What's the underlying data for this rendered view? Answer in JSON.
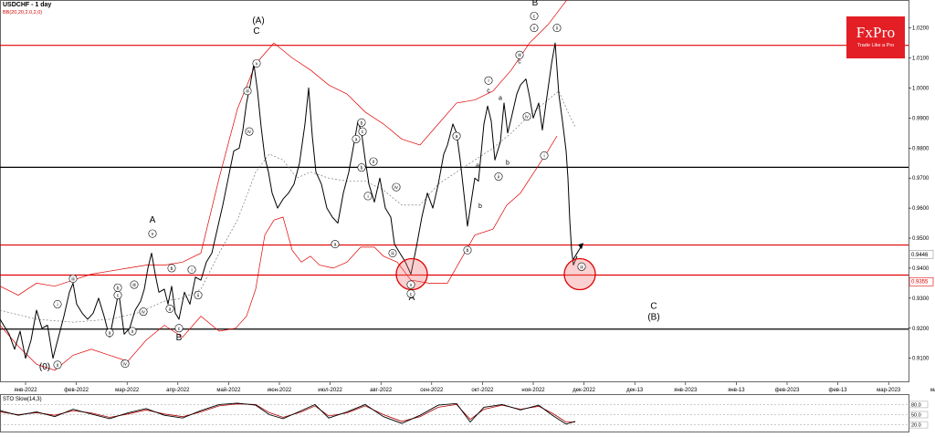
{
  "header": {
    "symbol_label": "USDCHF - 1 day",
    "bb_label": "BB(20,20,2.0,2,0)"
  },
  "logo": {
    "brand": "FxPro",
    "tagline": "Trade Like a Pro",
    "color": "#e31e25"
  },
  "stochastic": {
    "label": "STO Slow(14,3)",
    "levels": [
      "80.0",
      "50.0",
      "20.0"
    ]
  },
  "chart_data": {
    "type": "line",
    "instrument": "USDCHF",
    "timeframe": "1 day",
    "ylim": [
      0.902,
      1.029
    ],
    "x_tick_labels": [
      "янв-2022",
      "фев-2022",
      "мар-2022",
      "апр-2022",
      "май-2022",
      "июн-2022",
      "июл-2022",
      "авг-2022",
      "сен-2022",
      "окт-2022",
      "ноя-2022",
      "дек-2022",
      "дек-13",
      "янв-2023",
      "янв-13",
      "фев-2023",
      "фев-13",
      "мар-2023",
      "мар-13"
    ],
    "y_tick_labels": [
      "1.0200",
      "1.0100",
      "1.0000",
      "0.9900",
      "0.9800",
      "0.9700",
      "0.9600",
      "0.9500",
      "0.9400",
      "0.9300",
      "0.9200",
      "0.9100"
    ],
    "price_markers": [
      "0.9446",
      "0.9355"
    ],
    "price_path": [
      [
        0,
        0.923
      ],
      [
        10,
        0.918
      ],
      [
        16,
        0.913
      ],
      [
        22,
        0.919
      ],
      [
        28,
        0.91
      ],
      [
        34,
        0.916
      ],
      [
        40,
        0.926
      ],
      [
        46,
        0.92
      ],
      [
        52,
        0.921
      ],
      [
        58,
        0.91
      ],
      [
        64,
        0.917
      ],
      [
        70,
        0.924
      ],
      [
        76,
        0.932
      ],
      [
        80,
        0.935
      ],
      [
        84,
        0.928
      ],
      [
        90,
        0.925
      ],
      [
        96,
        0.923
      ],
      [
        102,
        0.925
      ],
      [
        108,
        0.93
      ],
      [
        114,
        0.924
      ],
      [
        120,
        0.917
      ],
      [
        126,
        0.926
      ],
      [
        130,
        0.932
      ],
      [
        136,
        0.918
      ],
      [
        142,
        0.92
      ],
      [
        148,
        0.926
      ],
      [
        154,
        0.929
      ],
      [
        158,
        0.933
      ],
      [
        162,
        0.94
      ],
      [
        166,
        0.945
      ],
      [
        170,
        0.938
      ],
      [
        174,
        0.932
      ],
      [
        180,
        0.933
      ],
      [
        184,
        0.928
      ],
      [
        188,
        0.934
      ],
      [
        192,
        0.925
      ],
      [
        196,
        0.923
      ],
      [
        202,
        0.932
      ],
      [
        208,
        0.928
      ],
      [
        214,
        0.937
      ],
      [
        220,
        0.936
      ],
      [
        226,
        0.942
      ],
      [
        232,
        0.945
      ],
      [
        238,
        0.953
      ],
      [
        244,
        0.961
      ],
      [
        250,
        0.97
      ],
      [
        256,
        0.979
      ],
      [
        262,
        0.98
      ],
      [
        266,
        0.986
      ],
      [
        270,
        0.995
      ],
      [
        274,
        1.001
      ],
      [
        278,
        1.008
      ],
      [
        282,
        0.999
      ],
      [
        286,
        0.987
      ],
      [
        290,
        0.977
      ],
      [
        294,
        0.972
      ],
      [
        298,
        0.965
      ],
      [
        304,
        0.96
      ],
      [
        310,
        0.963
      ],
      [
        316,
        0.965
      ],
      [
        322,
        0.968
      ],
      [
        328,
        0.975
      ],
      [
        334,
        0.988
      ],
      [
        338,
        1.0
      ],
      [
        342,
        0.984
      ],
      [
        346,
        0.972
      ],
      [
        352,
        0.968
      ],
      [
        358,
        0.96
      ],
      [
        364,
        0.957
      ],
      [
        370,
        0.955
      ],
      [
        376,
        0.965
      ],
      [
        382,
        0.972
      ],
      [
        388,
        0.982
      ],
      [
        392,
        0.989
      ],
      [
        396,
        0.985
      ],
      [
        400,
        0.976
      ],
      [
        404,
        0.968
      ],
      [
        410,
        0.962
      ],
      [
        416,
        0.97
      ],
      [
        422,
        0.96
      ],
      [
        428,
        0.957
      ],
      [
        432,
        0.948
      ],
      [
        438,
        0.945
      ],
      [
        444,
        0.942
      ],
      [
        450,
        0.938
      ],
      [
        456,
        0.947
      ],
      [
        462,
        0.957
      ],
      [
        468,
        0.965
      ],
      [
        474,
        0.96
      ],
      [
        480,
        0.968
      ],
      [
        486,
        0.978
      ],
      [
        490,
        0.981
      ],
      [
        496,
        0.988
      ],
      [
        500,
        0.985
      ],
      [
        504,
        0.976
      ],
      [
        508,
        0.965
      ],
      [
        512,
        0.954
      ],
      [
        516,
        0.962
      ],
      [
        520,
        0.97
      ],
      [
        524,
        0.969
      ],
      [
        530,
        0.988
      ],
      [
        534,
        0.994
      ],
      [
        538,
        0.989
      ],
      [
        542,
        0.976
      ],
      [
        548,
        0.982
      ],
      [
        552,
        0.995
      ],
      [
        556,
        0.985
      ],
      [
        560,
        0.99
      ],
      [
        566,
        0.998
      ],
      [
        570,
        1.001
      ],
      [
        576,
        1.003
      ],
      [
        580,
        0.997
      ],
      [
        584,
        0.99
      ],
      [
        590,
        0.995
      ],
      [
        594,
        0.986
      ],
      [
        598,
        0.995
      ],
      [
        604,
        1.008
      ],
      [
        608,
        1.015
      ],
      [
        612,
        0.998
      ],
      [
        616,
        0.989
      ],
      [
        620,
        0.979
      ],
      [
        622,
        0.97
      ],
      [
        624,
        0.956
      ],
      [
        626,
        0.946
      ],
      [
        628,
        0.941
      ],
      [
        632,
        0.944
      ]
    ],
    "lower_band_path": [
      [
        0,
        0.921
      ],
      [
        20,
        0.914
      ],
      [
        40,
        0.908
      ],
      [
        60,
        0.906
      ],
      [
        80,
        0.911
      ],
      [
        100,
        0.913
      ],
      [
        120,
        0.911
      ],
      [
        140,
        0.909
      ],
      [
        160,
        0.916
      ],
      [
        180,
        0.921
      ],
      [
        200,
        0.917
      ],
      [
        220,
        0.924
      ],
      [
        240,
        0.919
      ],
      [
        258,
        0.92
      ],
      [
        270,
        0.924
      ],
      [
        280,
        0.933
      ],
      [
        290,
        0.951
      ],
      [
        300,
        0.956
      ],
      [
        310,
        0.957
      ],
      [
        320,
        0.946
      ],
      [
        330,
        0.942
      ],
      [
        340,
        0.944
      ],
      [
        350,
        0.941
      ],
      [
        365,
        0.94
      ],
      [
        380,
        0.942
      ],
      [
        395,
        0.947
      ],
      [
        410,
        0.947
      ],
      [
        420,
        0.944
      ],
      [
        435,
        0.942
      ],
      [
        450,
        0.936
      ],
      [
        470,
        0.935
      ],
      [
        490,
        0.935
      ],
      [
        505,
        0.943
      ],
      [
        520,
        0.951
      ],
      [
        540,
        0.953
      ],
      [
        555,
        0.961
      ],
      [
        570,
        0.965
      ],
      [
        585,
        0.972
      ],
      [
        600,
        0.979
      ],
      [
        610,
        0.984
      ]
    ],
    "middle_band_path": [
      [
        0,
        0.926
      ],
      [
        40,
        0.923
      ],
      [
        80,
        0.922
      ],
      [
        120,
        0.923
      ],
      [
        150,
        0.925
      ],
      [
        180,
        0.929
      ],
      [
        200,
        0.93
      ],
      [
        220,
        0.933
      ],
      [
        240,
        0.945
      ],
      [
        260,
        0.956
      ],
      [
        280,
        0.972
      ],
      [
        295,
        0.978
      ],
      [
        310,
        0.976
      ],
      [
        325,
        0.97
      ],
      [
        340,
        0.972
      ],
      [
        360,
        0.97
      ],
      [
        380,
        0.969
      ],
      [
        400,
        0.969
      ],
      [
        420,
        0.966
      ],
      [
        440,
        0.961
      ],
      [
        460,
        0.961
      ],
      [
        480,
        0.968
      ],
      [
        500,
        0.972
      ],
      [
        520,
        0.976
      ],
      [
        540,
        0.98
      ],
      [
        560,
        0.985
      ],
      [
        580,
        0.991
      ],
      [
        600,
        0.996
      ],
      [
        612,
        0.999
      ],
      [
        622,
        0.992
      ],
      [
        630,
        0.987
      ]
    ],
    "upper_band_path": [
      [
        0,
        0.934
      ],
      [
        20,
        0.931
      ],
      [
        40,
        0.935
      ],
      [
        60,
        0.934
      ],
      [
        80,
        0.936
      ],
      [
        100,
        0.938
      ],
      [
        120,
        0.939
      ],
      [
        140,
        0.94
      ],
      [
        160,
        0.941
      ],
      [
        180,
        0.941
      ],
      [
        200,
        0.942
      ],
      [
        220,
        0.945
      ],
      [
        240,
        0.97
      ],
      [
        260,
        0.993
      ],
      [
        280,
        1.008
      ],
      [
        300,
        1.015
      ],
      [
        320,
        1.01
      ],
      [
        340,
        1.006
      ],
      [
        360,
        1.001
      ],
      [
        380,
        0.998
      ],
      [
        400,
        0.992
      ],
      [
        420,
        0.988
      ],
      [
        440,
        0.983
      ],
      [
        460,
        0.981
      ],
      [
        480,
        0.988
      ],
      [
        500,
        0.995
      ],
      [
        520,
        0.996
      ],
      [
        540,
        0.999
      ],
      [
        560,
        1.006
      ],
      [
        580,
        1.015
      ],
      [
        600,
        1.021
      ],
      [
        615,
        1.027
      ],
      [
        630,
        1.033
      ]
    ],
    "horizontal_levels": [
      {
        "value": 1.0142,
        "color": "#e00000"
      },
      {
        "value": 0.9736,
        "color": "#000000"
      },
      {
        "value": 0.9477,
        "color": "#e00000"
      },
      {
        "value": 0.9377,
        "color": "#e00000"
      },
      {
        "value": 0.9197,
        "color": "#000000"
      }
    ],
    "wave_labels": [
      {
        "text": "(A)",
        "x": 283,
        "y": 1.0215
      },
      {
        "text": "C",
        "x": 281,
        "y": 1.018
      },
      {
        "text": "A",
        "x": 167,
        "y": 0.9552
      },
      {
        "text": "B",
        "x": 196,
        "y": 0.916
      },
      {
        "text": "(0)",
        "x": 49,
        "y": 0.9063
      },
      {
        "text": "A",
        "x": 451,
        "y": 0.9293
      },
      {
        "text": "B",
        "x": 586,
        "y": 1.0275
      },
      {
        "text": "C",
        "x": 716,
        "y": 0.9265
      },
      {
        "text": "(B)",
        "x": 716,
        "y": 0.9228
      },
      {
        "text": "a",
        "x": 523,
        "y": 0.9735
      },
      {
        "text": "b",
        "x": 526,
        "y": 0.96
      },
      {
        "text": "c",
        "x": 535,
        "y": 0.9985
      },
      {
        "text": "a",
        "x": 548,
        "y": 0.996
      },
      {
        "text": "b",
        "x": 556,
        "y": 0.9745
      },
      {
        "text": "c",
        "x": 569,
        "y": 1.0082
      }
    ],
    "circled_labels": [
      {
        "text": "v",
        "x": 281,
        "y": 1.0082
      },
      {
        "text": "iii",
        "x": 271,
        "y": 0.999
      },
      {
        "text": "iv",
        "x": 273,
        "y": 0.9855
      },
      {
        "text": "v",
        "x": 167,
        "y": 0.9515
      },
      {
        "text": "iii",
        "x": 80,
        "y": 0.9365
      },
      {
        "text": "ii",
        "x": 63,
        "y": 0.9078
      },
      {
        "text": "i",
        "x": 63,
        "y": 0.928
      },
      {
        "text": "a",
        "x": 120,
        "y": 0.9185
      },
      {
        "text": "b",
        "x": 129,
        "y": 0.9335
      },
      {
        "text": "c",
        "x": 129,
        "y": 0.931
      },
      {
        "text": "iii",
        "x": 147,
        "y": 0.9345
      },
      {
        "text": "iv",
        "x": 157,
        "y": 0.9255
      },
      {
        "text": "ii",
        "x": 145,
        "y": 0.919
      },
      {
        "text": "iv",
        "x": 137,
        "y": 0.9082
      },
      {
        "text": "b",
        "x": 188,
        "y": 0.94
      },
      {
        "text": "a",
        "x": 186,
        "y": 0.9265
      },
      {
        "text": "c",
        "x": 196,
        "y": 0.92
      },
      {
        "text": "i",
        "x": 210,
        "y": 0.9395
      },
      {
        "text": "ii",
        "x": 217,
        "y": 0.931
      },
      {
        "text": "a",
        "x": 367,
        "y": 0.948
      },
      {
        "text": "b",
        "x": 396,
        "y": 0.9885
      },
      {
        "text": "c",
        "x": 397,
        "y": 0.9855
      },
      {
        "text": "a",
        "x": 390,
        "y": 0.983
      },
      {
        "text": "b",
        "x": 396,
        "y": 0.9735
      },
      {
        "text": "ii",
        "x": 409,
        "y": 0.9755
      },
      {
        "text": "i",
        "x": 403,
        "y": 0.964
      },
      {
        "text": "iv",
        "x": 434,
        "y": 0.967
      },
      {
        "text": "iii",
        "x": 430,
        "y": 0.945
      },
      {
        "text": "v",
        "x": 450,
        "y": 0.9345
      },
      {
        "text": "c",
        "x": 450,
        "y": 0.9315
      },
      {
        "text": "a",
        "x": 500,
        "y": 0.984
      },
      {
        "text": "b",
        "x": 512,
        "y": 0.946
      },
      {
        "text": "i",
        "x": 535,
        "y": 1.0025
      },
      {
        "text": "ii",
        "x": 546,
        "y": 0.9705
      },
      {
        "text": "iii",
        "x": 569,
        "y": 1.011
      },
      {
        "text": "iv",
        "x": 577,
        "y": 0.9905
      },
      {
        "text": "i",
        "x": 596,
        "y": 0.9775
      },
      {
        "text": "c",
        "x": 585,
        "y": 1.024
      },
      {
        "text": "v",
        "x": 585,
        "y": 1.02
      },
      {
        "text": "ii",
        "x": 610,
        "y": 1.02
      },
      {
        "text": "iii",
        "x": 637,
        "y": 0.9405
      }
    ],
    "highlight_circles": [
      {
        "x": 451,
        "y": 0.938
      },
      {
        "x": 635,
        "y": 0.938
      }
    ],
    "projection_arrow": [
      [
        628,
        0.943
      ],
      [
        637,
        0.9475
      ]
    ],
    "stochastic": {
      "ylim": [
        0,
        100
      ],
      "k_path": [
        [
          0,
          62
        ],
        [
          20,
          48
        ],
        [
          40,
          58
        ],
        [
          60,
          44
        ],
        [
          80,
          66
        ],
        [
          100,
          52
        ],
        [
          120,
          38
        ],
        [
          140,
          55
        ],
        [
          160,
          68
        ],
        [
          180,
          48
        ],
        [
          200,
          40
        ],
        [
          220,
          62
        ],
        [
          240,
          80
        ],
        [
          260,
          84
        ],
        [
          280,
          78
        ],
        [
          295,
          50
        ],
        [
          310,
          38
        ],
        [
          330,
          62
        ],
        [
          345,
          80
        ],
        [
          360,
          40
        ],
        [
          380,
          58
        ],
        [
          400,
          80
        ],
        [
          420,
          44
        ],
        [
          440,
          24
        ],
        [
          460,
          48
        ],
        [
          480,
          78
        ],
        [
          500,
          83
        ],
        [
          515,
          28
        ],
        [
          530,
          72
        ],
        [
          550,
          80
        ],
        [
          570,
          64
        ],
        [
          590,
          78
        ],
        [
          605,
          48
        ],
        [
          620,
          22
        ],
        [
          630,
          30
        ]
      ],
      "d_path": [
        [
          0,
          58
        ],
        [
          20,
          50
        ],
        [
          40,
          56
        ],
        [
          60,
          48
        ],
        [
          80,
          62
        ],
        [
          100,
          55
        ],
        [
          120,
          42
        ],
        [
          140,
          52
        ],
        [
          160,
          64
        ],
        [
          180,
          52
        ],
        [
          200,
          44
        ],
        [
          220,
          58
        ],
        [
          240,
          76
        ],
        [
          260,
          82
        ],
        [
          280,
          80
        ],
        [
          295,
          56
        ],
        [
          310,
          42
        ],
        [
          330,
          58
        ],
        [
          345,
          76
        ],
        [
          360,
          46
        ],
        [
          380,
          55
        ],
        [
          400,
          76
        ],
        [
          420,
          50
        ],
        [
          440,
          30
        ],
        [
          460,
          44
        ],
        [
          480,
          72
        ],
        [
          500,
          80
        ],
        [
          515,
          36
        ],
        [
          530,
          66
        ],
        [
          550,
          78
        ],
        [
          570,
          66
        ],
        [
          590,
          75
        ],
        [
          605,
          54
        ],
        [
          620,
          28
        ],
        [
          630,
          28
        ]
      ]
    }
  }
}
